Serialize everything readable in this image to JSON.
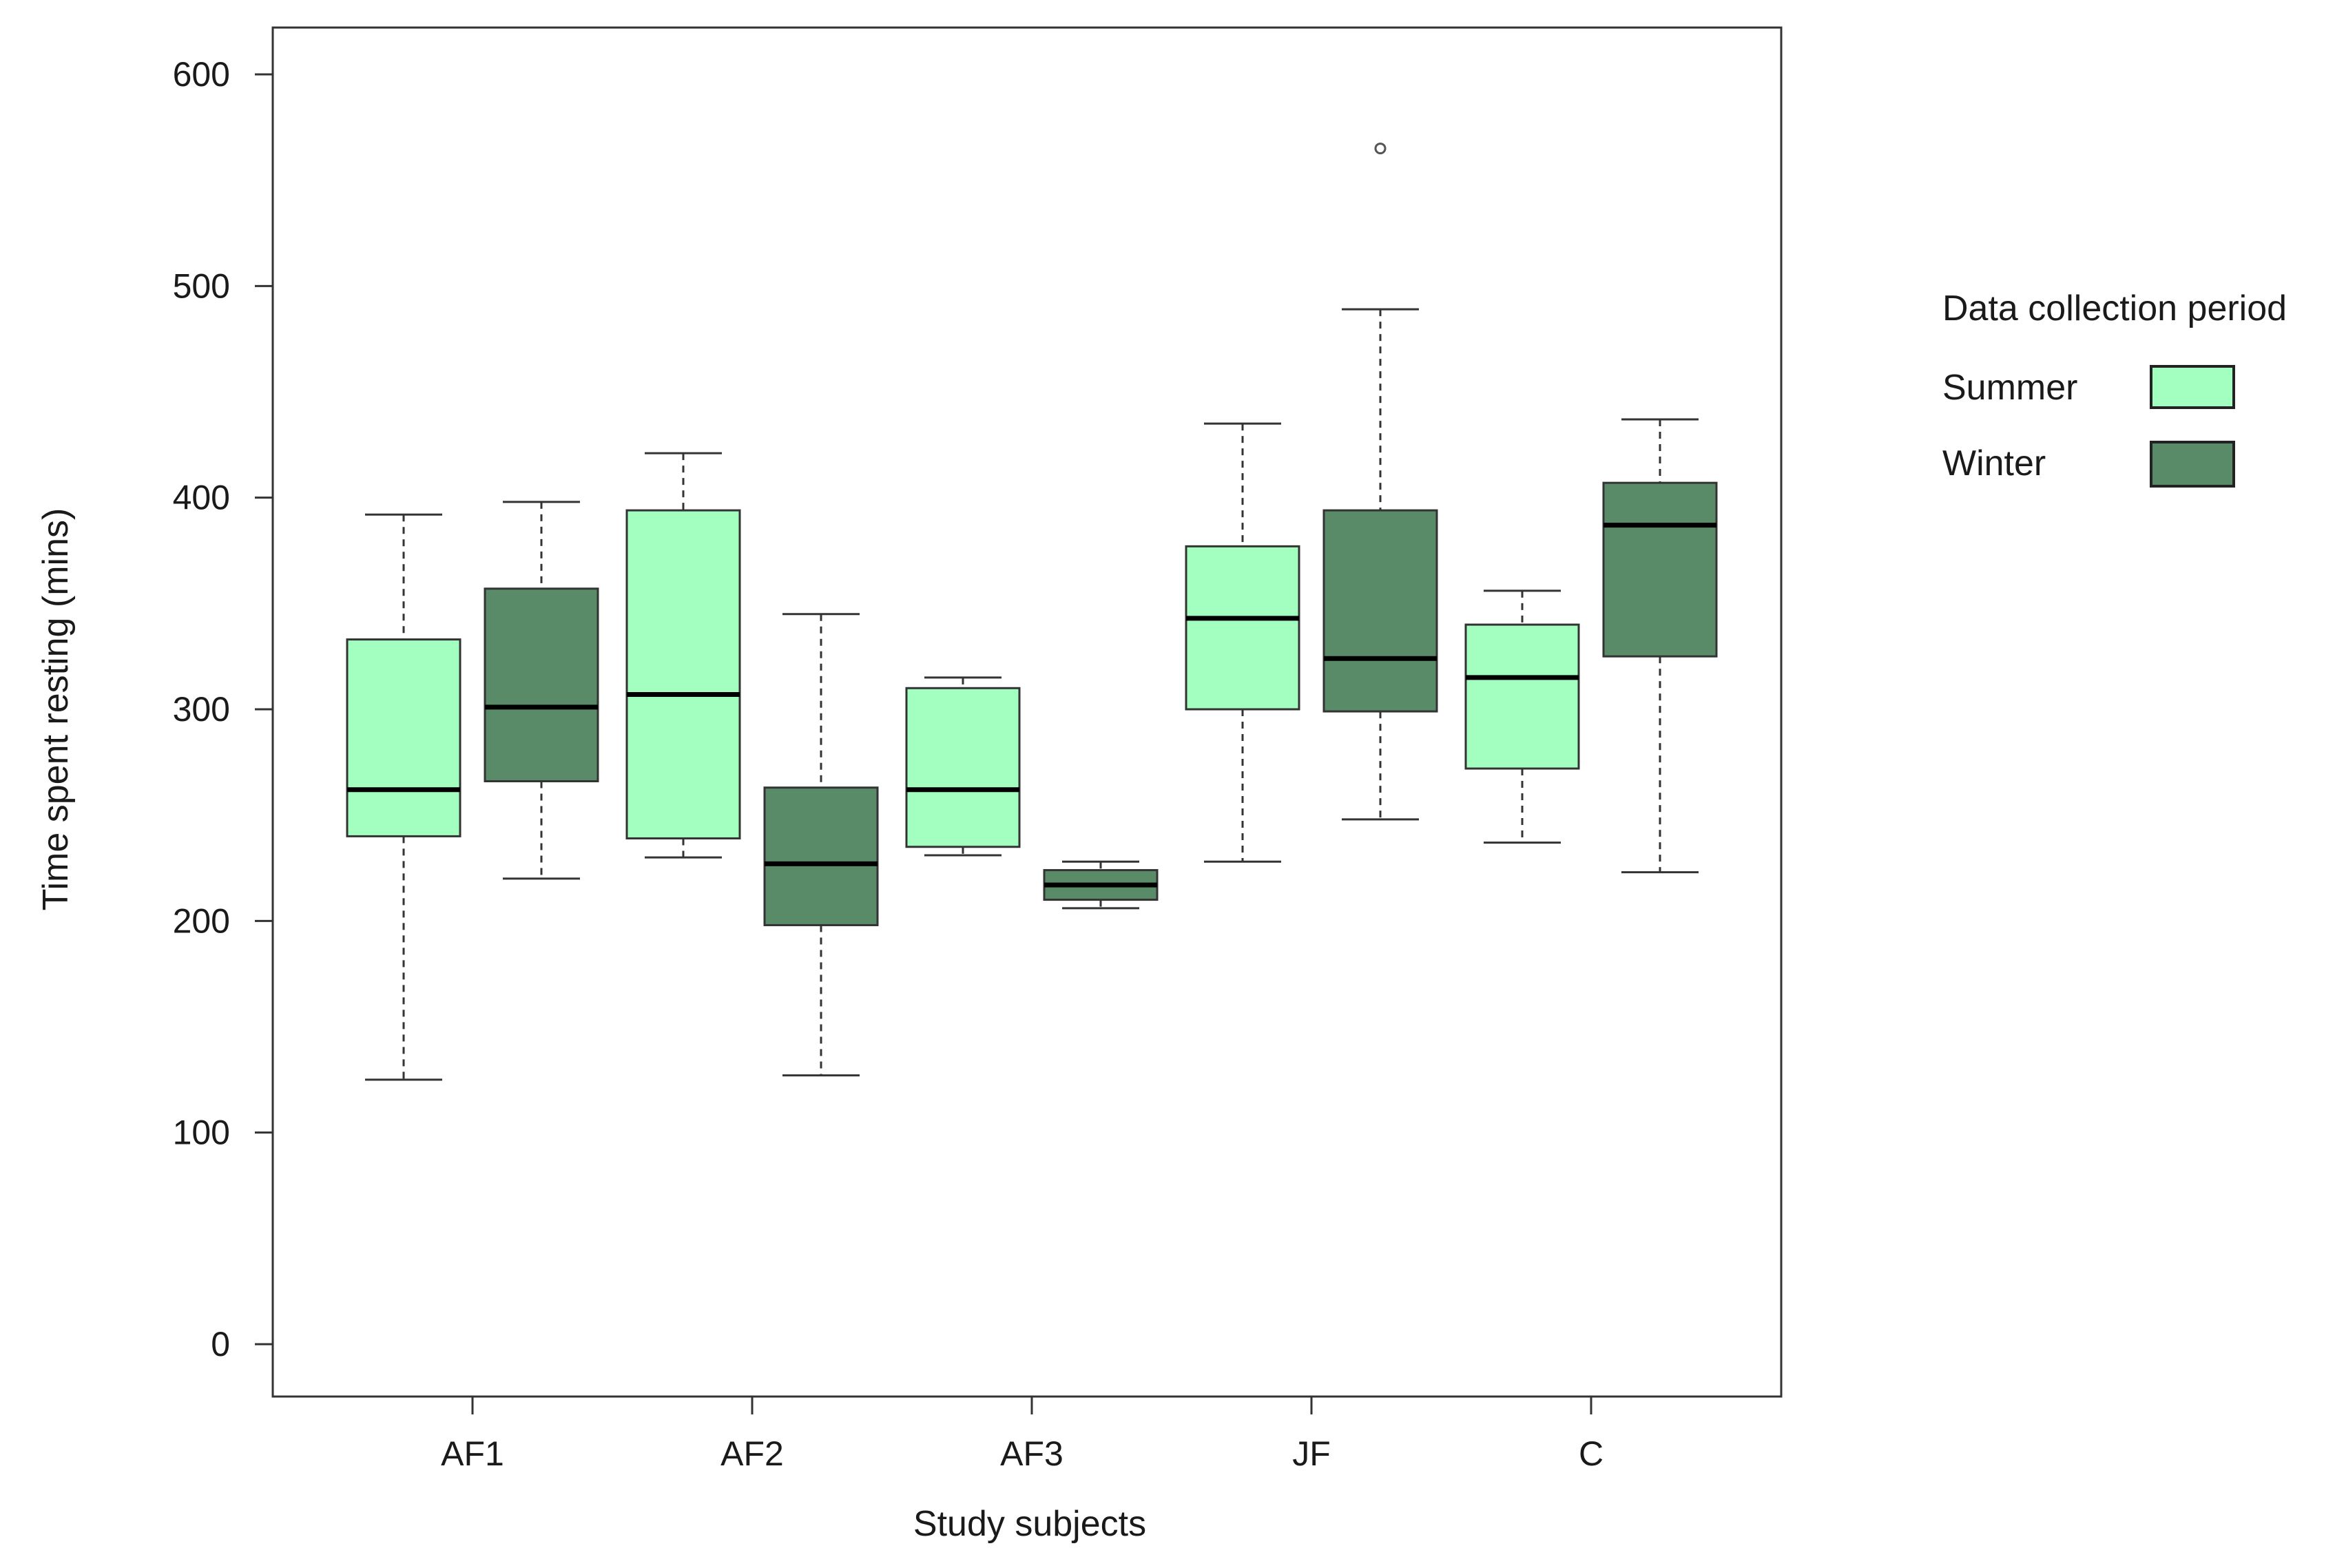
{
  "chart_data": {
    "type": "boxplot",
    "title": "",
    "xlabel": "Study subjects",
    "ylabel": "Time spent resting (mins)",
    "ylim": [
      -25,
      625
    ],
    "yticks": [
      0,
      100,
      200,
      300,
      400,
      500,
      600
    ],
    "ytick_labels": [
      "0",
      "100",
      "200",
      "300",
      "400",
      "500",
      "600"
    ],
    "categories": [
      "AF1",
      "AF2",
      "AF3",
      "JF",
      "C"
    ],
    "legend": {
      "title": "Data collection period",
      "position": "right",
      "entries": [
        {
          "name": "Summer",
          "color": "#a3ffbf"
        },
        {
          "name": "Winter",
          "color": "#5a8b68"
        }
      ]
    },
    "series": [
      {
        "name": "Summer",
        "color": "#a3ffbf",
        "boxes": [
          {
            "category": "AF1",
            "min": 125,
            "q1": 240,
            "median": 262,
            "q3": 333,
            "max": 392,
            "outliers": []
          },
          {
            "category": "AF2",
            "min": 230,
            "q1": 239,
            "median": 307,
            "q3": 394,
            "max": 421,
            "outliers": []
          },
          {
            "category": "AF3",
            "min": 231,
            "q1": 235,
            "median": 262,
            "q3": 310,
            "max": 315,
            "outliers": []
          },
          {
            "category": "JF",
            "min": 228,
            "q1": 300,
            "median": 343,
            "q3": 377,
            "max": 435,
            "outliers": []
          },
          {
            "category": "C",
            "min": 237,
            "q1": 272,
            "median": 315,
            "q3": 340,
            "max": 356,
            "outliers": []
          }
        ]
      },
      {
        "name": "Winter",
        "color": "#5a8b68",
        "boxes": [
          {
            "category": "AF1",
            "min": 220,
            "q1": 266,
            "median": 301,
            "q3": 357,
            "max": 398,
            "outliers": []
          },
          {
            "category": "AF2",
            "min": 127,
            "q1": 198,
            "median": 227,
            "q3": 263,
            "max": 345,
            "outliers": []
          },
          {
            "category": "AF3",
            "min": 206,
            "q1": 210,
            "median": 217,
            "q3": 224,
            "max": 228,
            "outliers": []
          },
          {
            "category": "JF",
            "min": 248,
            "q1": 299,
            "median": 324,
            "q3": 394,
            "max": 489,
            "outliers": [
              565
            ]
          },
          {
            "category": "C",
            "min": 223,
            "q1": 325,
            "median": 387,
            "q3": 407,
            "max": 437,
            "outliers": []
          }
        ]
      }
    ]
  }
}
